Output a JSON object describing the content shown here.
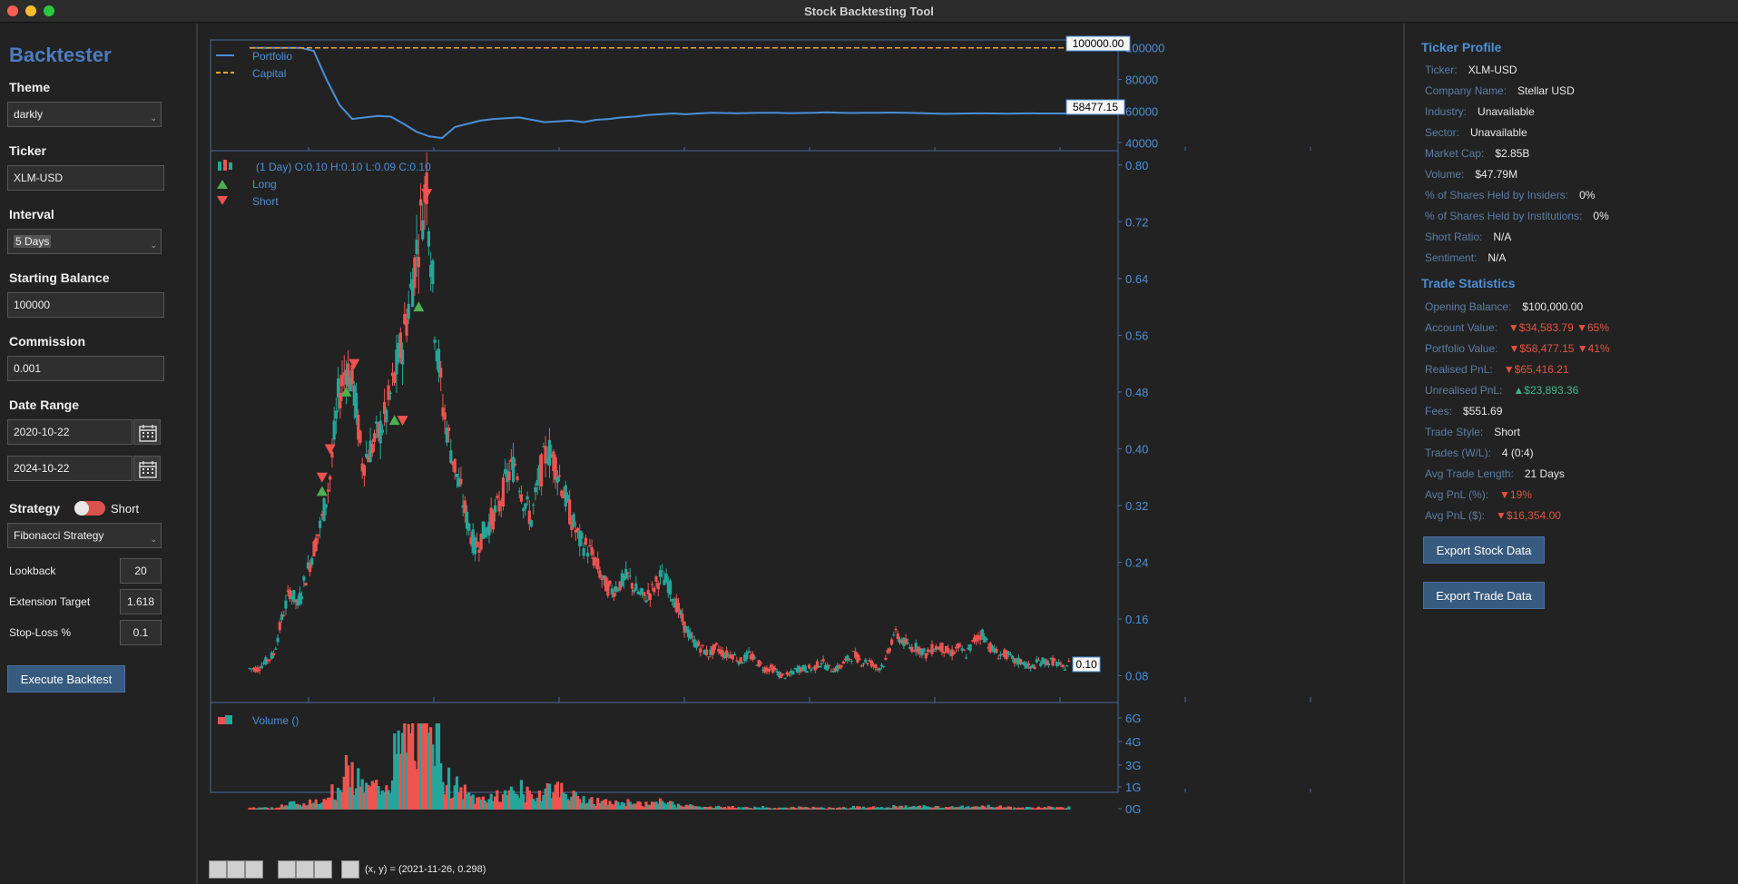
{
  "window": {
    "title": "Stock Backtesting Tool"
  },
  "sidebar": {
    "app_name": "Backtester",
    "theme_label": "Theme",
    "theme_value": "darkly",
    "ticker_label": "Ticker",
    "ticker_value": "XLM-USD",
    "interval_label": "Interval",
    "interval_value": "5 Days",
    "balance_label": "Starting Balance",
    "balance_value": "100000",
    "commission_label": "Commission",
    "commission_value": "0.001",
    "date_range_label": "Date Range",
    "date_start": "2020-10-22",
    "date_end": "2024-10-22",
    "strategy_label": "Strategy",
    "strategy_toggle_label": "Short",
    "strategy_value": "Fibonacci Strategy",
    "params": [
      {
        "label": "Lookback",
        "value": "20"
      },
      {
        "label": "Extension Target",
        "value": "1.618"
      },
      {
        "label": "Stop-Loss %",
        "value": "0.1"
      }
    ],
    "execute_label": "Execute Backtest"
  },
  "chart_data": [
    {
      "type": "line",
      "series": [
        {
          "name": "Portfolio",
          "color": "#4a90d9",
          "values": [
            100000,
            100000,
            100000,
            100000,
            100000,
            98000,
            80000,
            64000,
            55000,
            56000,
            57000,
            56500,
            52000,
            47000,
            44000,
            43000,
            50000,
            52000,
            54000,
            55000,
            55500,
            56000,
            54500,
            53000,
            53500,
            54000,
            53000,
            54500,
            55000,
            56000,
            56500,
            57500,
            58000,
            58500,
            58000,
            58500,
            59000,
            58800,
            58600,
            58800,
            59000,
            58900,
            58700,
            58800,
            59000,
            59200,
            59000,
            58800,
            58900,
            59000,
            59100,
            59000,
            58800,
            58500,
            58300,
            58400,
            58500,
            58600,
            58500,
            58400,
            58500,
            58600,
            58550,
            58500,
            58477.15
          ]
        },
        {
          "name": "Capital",
          "color": "#f0a030",
          "values": [
            100000,
            100000,
            100000,
            100000,
            100000,
            100000,
            100000,
            100000,
            100000,
            100000,
            100000,
            100000,
            100000,
            100000,
            100000,
            100000,
            100000,
            100000,
            100000,
            100000,
            100000,
            100000,
            100000,
            100000,
            100000,
            100000,
            100000,
            100000,
            100000,
            100000,
            100000,
            100000,
            100000,
            100000,
            100000,
            100000,
            100000,
            100000,
            100000,
            100000,
            100000,
            100000,
            100000,
            100000,
            100000,
            100000,
            100000,
            100000,
            100000,
            100000,
            100000,
            100000,
            100000,
            100000,
            100000,
            100000,
            100000,
            100000,
            100000,
            100000,
            100000,
            100000,
            100000,
            100000,
            100000
          ]
        }
      ],
      "yticks": [
        "100000",
        "80000",
        "60000",
        "40000"
      ],
      "ylim": [
        35000,
        105000
      ],
      "end_labels": [
        "100000.00",
        "58477.15"
      ]
    },
    {
      "type": "candlestick",
      "header": "(1 Day) O:0.10 H:0.10 L:0.09 C:0.10",
      "legend": [
        "Long",
        "Short"
      ],
      "yticks": [
        "0.80",
        "0.72",
        "0.64",
        "0.56",
        "0.48",
        "0.40",
        "0.32",
        "0.24",
        "0.16",
        "0.08"
      ],
      "ylim": [
        0.05,
        0.81
      ],
      "last_price": "0.10",
      "close_path": [
        0.09,
        0.09,
        0.1,
        0.11,
        0.16,
        0.2,
        0.18,
        0.22,
        0.26,
        0.3,
        0.36,
        0.47,
        0.52,
        0.48,
        0.38,
        0.4,
        0.42,
        0.45,
        0.5,
        0.55,
        0.62,
        0.7,
        0.78,
        0.58,
        0.46,
        0.4,
        0.35,
        0.3,
        0.26,
        0.28,
        0.3,
        0.32,
        0.36,
        0.38,
        0.33,
        0.3,
        0.36,
        0.4,
        0.38,
        0.34,
        0.3,
        0.27,
        0.26,
        0.24,
        0.21,
        0.2,
        0.21,
        0.22,
        0.2,
        0.19,
        0.2,
        0.22,
        0.21,
        0.18,
        0.15,
        0.13,
        0.12,
        0.11,
        0.12,
        0.11,
        0.11,
        0.1,
        0.11,
        0.1,
        0.09,
        0.09,
        0.08,
        0.08,
        0.09,
        0.09,
        0.09,
        0.1,
        0.09,
        0.09,
        0.1,
        0.11,
        0.1,
        0.1,
        0.09,
        0.1,
        0.14,
        0.13,
        0.12,
        0.12,
        0.11,
        0.12,
        0.12,
        0.11,
        0.12,
        0.11,
        0.13,
        0.14,
        0.12,
        0.11,
        0.11,
        0.1,
        0.1,
        0.09,
        0.1,
        0.1,
        0.1,
        0.09,
        0.1
      ],
      "long_markers": [
        [
          0.48,
          12
        ],
        [
          0.34,
          9
        ],
        [
          0.44,
          18
        ],
        [
          0.6,
          21
        ]
      ],
      "short_markers": [
        [
          0.36,
          9
        ],
        [
          0.4,
          10
        ],
        [
          0.52,
          13
        ],
        [
          0.44,
          19
        ],
        [
          0.76,
          22
        ]
      ]
    },
    {
      "type": "bar",
      "title": "Volume ()",
      "yticks": [
        "6G",
        "4G",
        "3G",
        "1G",
        "0G"
      ]
    }
  ],
  "toolbar": {
    "coords": "(x, y) = (2021-11-26, 0.298)"
  },
  "profile": {
    "title": "Ticker Profile",
    "rows": [
      {
        "k": "Ticker:",
        "v": "XLM-USD"
      },
      {
        "k": "Company Name:",
        "v": "Stellar USD"
      },
      {
        "k": "Industry:",
        "v": "Unavailable"
      },
      {
        "k": "Sector:",
        "v": "Unavailable"
      },
      {
        "k": "Market Cap:",
        "v": "$2.85B"
      },
      {
        "k": "Volume:",
        "v": "$47.79M"
      },
      {
        "k": "% of Shares Held by Insiders:",
        "v": "0%"
      },
      {
        "k": "% of Shares Held by Institutions:",
        "v": "0%"
      },
      {
        "k": "Short Ratio:",
        "v": "N/A"
      },
      {
        "k": "Sentiment:",
        "v": "N/A"
      }
    ]
  },
  "stats": {
    "title": "Trade Statistics",
    "rows": [
      {
        "k": "Opening Balance:",
        "v": "$100,000.00",
        "tone": ""
      },
      {
        "k": "Account Value:",
        "v": "▼$34,583.79  ▼65%",
        "tone": "neg"
      },
      {
        "k": "Portfolio Value:",
        "v": "▼$58,477.15  ▼41%",
        "tone": "neg"
      },
      {
        "k": "Realised PnL:",
        "v": "▼$65,416.21",
        "tone": "neg"
      },
      {
        "k": "Unrealised PnL:",
        "v": "▲$23,893.36",
        "tone": "pos"
      },
      {
        "k": "Fees:",
        "v": "$551.69",
        "tone": ""
      },
      {
        "k": "Trade Style:",
        "v": "Short",
        "tone": ""
      },
      {
        "k": "Trades (W/L):",
        "v": "4 (0:4)",
        "tone": ""
      },
      {
        "k": "Avg Trade Length:",
        "v": "21 Days",
        "tone": ""
      },
      {
        "k": "Avg PnL (%):",
        "v": "▼19%",
        "tone": "neg"
      },
      {
        "k": "Avg PnL ($):",
        "v": "▼$16,354.00",
        "tone": "neg"
      }
    ],
    "export_stock": "Export Stock Data",
    "export_trade": "Export Trade Data"
  }
}
